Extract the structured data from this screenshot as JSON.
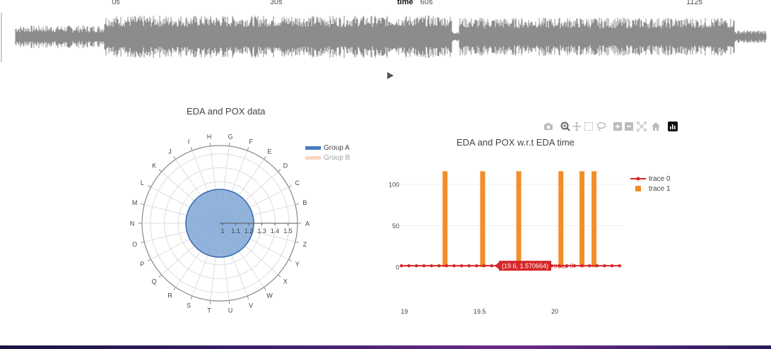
{
  "timeline": {
    "ticks": [
      {
        "label": "0s",
        "pos": 0.145
      },
      {
        "label": "30s",
        "pos": 0.35
      },
      {
        "label": "60s",
        "pos": 0.545
      },
      {
        "label": "112s",
        "pos": 0.89
      }
    ],
    "axis_title": "time",
    "wave_color": "#8c8c8c"
  },
  "player": {
    "play_icon": "play-icon"
  },
  "polar": {
    "title": "EDA and POX data",
    "categories": [
      "A",
      "B",
      "C",
      "D",
      "E",
      "F",
      "G",
      "H",
      "I",
      "J",
      "K",
      "L",
      "M",
      "N",
      "O",
      "P",
      "Q",
      "R",
      "S",
      "T",
      "U",
      "V",
      "W",
      "X",
      "Y",
      "Z"
    ],
    "radial_ticks": [
      "1",
      "1.1",
      "1.2",
      "1.3",
      "1.4",
      "1.5"
    ],
    "legend": [
      {
        "name": "Group A",
        "color": "#4a7bbf",
        "active": true
      },
      {
        "name": "Group B",
        "color": "#f4b183",
        "active": false
      }
    ]
  },
  "modebar": {
    "icons": [
      "camera-icon",
      "zoom-icon",
      "pan-icon",
      "box-select-icon",
      "lasso-icon",
      "zoom-in-icon",
      "zoom-out-icon",
      "autoscale-icon",
      "home-icon",
      "plotly-logo-icon"
    ]
  },
  "chart_data": {
    "type": "bar",
    "title": "EDA and POX w.r.t EDA time",
    "xlabel": "",
    "ylabel": "",
    "xlim": [
      18.98,
      20.45
    ],
    "ylim": [
      -6,
      118
    ],
    "x_ticks": [
      "19",
      "19.5",
      "20"
    ],
    "y_ticks": [
      "0",
      "50",
      "100"
    ],
    "series": [
      {
        "name": "trace 0",
        "type": "line",
        "color": "#d62728",
        "x": [
          18.98,
          19.03,
          19.08,
          19.13,
          19.18,
          19.23,
          19.28,
          19.33,
          19.38,
          19.43,
          19.48,
          19.53,
          19.58,
          19.63,
          19.68,
          19.73,
          19.78,
          19.83,
          19.88,
          19.93,
          19.98,
          20.03,
          20.08,
          20.13,
          20.18,
          20.23,
          20.28,
          20.33,
          20.38,
          20.43
        ],
        "y": [
          1.57,
          1.57,
          1.57,
          1.57,
          1.57,
          1.57,
          1.57,
          1.57,
          1.57,
          1.57,
          1.57,
          1.57,
          1.57,
          1.57,
          1.57,
          1.57,
          1.57,
          1.57,
          1.57,
          1.57,
          1.57,
          1.57,
          1.57,
          1.57,
          1.57,
          1.57,
          1.57,
          1.57,
          1.57,
          1.57
        ]
      },
      {
        "name": "trace 1",
        "type": "bar",
        "color": "#f28e2b",
        "x": [
          19.27,
          19.52,
          19.76,
          20.04,
          20.18,
          20.26
        ],
        "y": [
          116,
          116,
          116,
          116,
          116,
          116
        ]
      }
    ],
    "hover": {
      "text": "(19.6, 1.570664)",
      "trace": "trace 0",
      "x": 19.6,
      "y": 1.570664
    }
  },
  "colors": {
    "accent_red": "#d62728",
    "bar_orange": "#f28e2b",
    "polar_fill": "#7fa6d6"
  }
}
